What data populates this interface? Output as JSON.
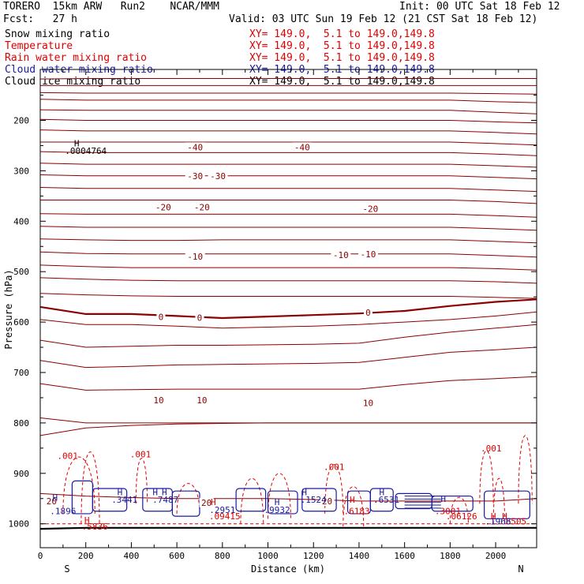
{
  "header": {
    "model": "TORERO  15km ARW   Run2    NCAR/MMM",
    "init": "Init: 00 UTC Sat 18 Feb 12",
    "fcst": "Fcst:   27 h",
    "valid": "Valid: 03 UTC Sun 19 Feb 12 (21 CST Sat 18 Feb 12)"
  },
  "legend": [
    {
      "name": "Snow mixing ratio",
      "coords": "XY= 149.0,  5.1 to 149.0,149.8",
      "color": "black"
    },
    {
      "name": "Temperature",
      "coords": "XY= 149.0,  5.1 to 149.0,149.8",
      "color": "red"
    },
    {
      "name": "Rain water mixing ratio",
      "coords": "XY= 149.0,  5.1 to 149.0,149.8",
      "color": "red"
    },
    {
      "name": "Cloud water mixing ratio",
      "coords": "XY= 149.0,  5.1 to 149.0,149.8",
      "color": "blue"
    },
    {
      "name": "Cloud ice mixing ratio",
      "coords": "XY= 149.0,  5.1 to 149.0,149.8",
      "color": "black"
    }
  ],
  "colors": {
    "temperature": "#8b0000",
    "rain": "#e00000",
    "cloud_water": "#1a1aa0",
    "black": "#000000"
  },
  "chart_data": {
    "type": "line",
    "xlabel": "Distance (km)",
    "ylabel": "Pressure (hPa)",
    "xlim": [
      0,
      2180
    ],
    "ylim": [
      1050,
      100
    ],
    "x_ticks": [
      "0",
      "200",
      "400",
      "600",
      "800",
      "1000",
      "1200",
      "1400",
      "1600",
      "1800",
      "2000"
    ],
    "y_ticks": [
      "200",
      "300",
      "400",
      "500",
      "600",
      "700",
      "800",
      "900",
      "1000"
    ],
    "end_labels": {
      "left": "S",
      "right": "N"
    },
    "temperature_contours_x": [
      0,
      200,
      400,
      600,
      800,
      1000,
      1200,
      1400,
      1600,
      1800,
      2000,
      2180
    ],
    "temperature_contours": [
      {
        "p": [
          118,
          117,
          117,
          117,
          117,
          117,
          117,
          117,
          117,
          117,
          117,
          117
        ]
      },
      {
        "p": [
          131,
          131,
          131,
          131,
          131,
          131,
          131,
          131,
          131,
          131,
          131,
          131
        ]
      },
      {
        "p": [
          145,
          146,
          146,
          146,
          146,
          146,
          146,
          146,
          146,
          146,
          147,
          148
        ]
      },
      {
        "p": [
          158,
          160,
          160,
          160,
          160,
          160,
          160,
          160,
          160,
          160,
          163,
          165
        ]
      },
      {
        "p": [
          179,
          180,
          180,
          180,
          180,
          180,
          180,
          180,
          180,
          180,
          184,
          187
        ]
      },
      {
        "p": [
          198,
          200,
          200,
          200,
          200,
          200,
          200,
          200,
          200,
          200,
          203,
          205
        ]
      },
      {
        "p": [
          219,
          221,
          221,
          221,
          221,
          221,
          221,
          221,
          221,
          221,
          224,
          227
        ]
      },
      {
        "p": [
          243,
          243,
          243,
          243,
          243,
          243,
          243,
          243,
          243,
          243,
          246,
          249
        ]
      },
      {
        "p": [
          262,
          264,
          264,
          264,
          264,
          264,
          264,
          264,
          264,
          264,
          267,
          270
        ]
      },
      {
        "p": [
          285,
          287,
          287,
          287,
          287,
          287,
          287,
          287,
          287,
          287,
          290,
          293
        ]
      },
      {
        "p": [
          308,
          310,
          310,
          310,
          310,
          310,
          310,
          310,
          310,
          310,
          313,
          316
        ]
      },
      {
        "p": [
          333,
          335,
          335,
          335,
          335,
          335,
          335,
          335,
          335,
          335,
          338,
          341
        ]
      },
      {
        "p": [
          358,
          358,
          358,
          358,
          358,
          358,
          358,
          358,
          358,
          358,
          361,
          365
        ]
      },
      {
        "p": [
          385,
          386,
          386,
          386,
          386,
          386,
          386,
          386,
          386,
          386,
          389,
          392
        ]
      },
      {
        "p": [
          410,
          412,
          412,
          412,
          412,
          412,
          412,
          412,
          412,
          412,
          415,
          418
        ]
      },
      {
        "p": [
          435,
          437,
          438,
          438,
          437,
          437,
          437,
          437,
          437,
          437,
          440,
          443
        ]
      },
      {
        "p": [
          461,
          464,
          465,
          465,
          465,
          465,
          465,
          465,
          465,
          465,
          468,
          471
        ]
      },
      {
        "p": [
          487,
          490,
          492,
          492,
          492,
          492,
          492,
          492,
          492,
          492,
          494,
          497
        ]
      },
      {
        "p": [
          512,
          515,
          517,
          518,
          518,
          518,
          518,
          518,
          518,
          518,
          520,
          523
        ]
      },
      {
        "p": [
          543,
          546,
          548,
          549,
          549,
          549,
          549,
          549,
          549,
          549,
          551,
          553
        ]
      },
      {
        "p": [
          570,
          584,
          584,
          588,
          592,
          589,
          586,
          583,
          578,
          568,
          560,
          555
        ],
        "bold": true
      },
      {
        "p": [
          595,
          605,
          605,
          608,
          612,
          610,
          608,
          605,
          600,
          595,
          588,
          580
        ]
      },
      {
        "p": [
          636,
          650,
          648,
          646,
          646,
          645,
          644,
          642,
          630,
          620,
          612,
          605
        ]
      },
      {
        "p": [
          676,
          690,
          688,
          685,
          684,
          683,
          682,
          680,
          670,
          660,
          655,
          650
        ]
      },
      {
        "p": [
          722,
          735,
          734,
          733,
          733,
          733,
          733,
          733,
          724,
          716,
          712,
          708
        ]
      },
      {
        "p": [
          790,
          800,
          800,
          800,
          800,
          800,
          800,
          800,
          800,
          800,
          800,
          800
        ]
      },
      {
        "p": [
          825,
          810,
          805,
          802,
          801,
          800,
          800,
          800,
          800,
          800,
          800,
          800
        ]
      },
      {
        "p": [
          940,
          945,
          948,
          950,
          950,
          950,
          952,
          955,
          955,
          955,
          955,
          950
        ]
      }
    ],
    "temperature_labels": [
      {
        "text": "-40",
        "x": 680,
        "p": 253
      },
      {
        "text": "-40",
        "x": 1150,
        "p": 253
      },
      {
        "text": "-30",
        "x": 680,
        "p": 310
      },
      {
        "text": "-30",
        "x": 780,
        "p": 310
      },
      {
        "text": "-20",
        "x": 540,
        "p": 372
      },
      {
        "text": "-20",
        "x": 710,
        "p": 372
      },
      {
        "text": "-20",
        "x": 1450,
        "p": 375
      },
      {
        "text": "-10",
        "x": 680,
        "p": 470
      },
      {
        "text": "-10",
        "x": 1320,
        "p": 467
      },
      {
        "text": "-10",
        "x": 1440,
        "p": 465
      },
      {
        "text": "0",
        "x": 530,
        "p": 590
      },
      {
        "text": "0",
        "x": 700,
        "p": 591
      },
      {
        "text": "0",
        "x": 1440,
        "p": 581
      },
      {
        "text": "10",
        "x": 520,
        "p": 755
      },
      {
        "text": "10",
        "x": 710,
        "p": 755
      },
      {
        "text": "10",
        "x": 1440,
        "p": 760
      },
      {
        "text": "20",
        "x": 50,
        "p": 955
      },
      {
        "text": "20",
        "x": 730,
        "p": 958
      },
      {
        "text": "20",
        "x": 1260,
        "p": 955
      }
    ],
    "rain_labels": [
      {
        "text": ".001",
        "x": 120,
        "p": 865
      },
      {
        "text": ".001",
        "x": 440,
        "p": 862
      },
      {
        "text": ".001",
        "x": 1290,
        "p": 887
      },
      {
        "text": ".001",
        "x": 1980,
        "p": 850
      }
    ],
    "cloud_water_labels": [
      {
        "text": ".1896",
        "x": 100,
        "p": 975
      },
      {
        "text": ".3441",
        "x": 370,
        "p": 952
      },
      {
        "text": ".7487",
        "x": 550,
        "p": 952
      },
      {
        "text": ".2951",
        "x": 800,
        "p": 972
      },
      {
        "text": ".9932",
        "x": 1040,
        "p": 972
      },
      {
        "text": ".1524",
        "x": 1200,
        "p": 952
      },
      {
        "text": ".6531",
        "x": 1520,
        "p": 952
      },
      {
        "text": ".1966",
        "x": 2010,
        "p": 995
      }
    ],
    "rain_value_labels": [
      {
        "text": ".5836",
        "x": 240,
        "p": 1005
      },
      {
        "text": ".09415",
        "x": 810,
        "p": 985
      },
      {
        "text": ".6183",
        "x": 1390,
        "p": 975
      },
      {
        "text": ".06126",
        "x": 1850,
        "p": 985
      },
      {
        "text": ".3001",
        "x": 1790,
        "p": 975
      },
      {
        "text": "8505",
        "x": 2090,
        "p": 995
      }
    ],
    "snow_max": {
      "text": ".0004764",
      "x": 200,
      "p": 260
    },
    "H_labels": [
      {
        "x": 160,
        "p": 245,
        "color": "black"
      },
      {
        "x": 65,
        "p": 948,
        "color": "blue"
      },
      {
        "x": 205,
        "p": 993,
        "color": "red"
      },
      {
        "x": 350,
        "p": 937,
        "color": "blue"
      },
      {
        "x": 505,
        "p": 937,
        "color": "blue"
      },
      {
        "x": 545,
        "p": 937,
        "color": "blue"
      },
      {
        "x": 760,
        "p": 957,
        "color": "red"
      },
      {
        "x": 1040,
        "p": 957,
        "color": "blue"
      },
      {
        "x": 1160,
        "p": 937,
        "color": "blue"
      },
      {
        "x": 1370,
        "p": 952,
        "color": "red"
      },
      {
        "x": 1500,
        "p": 937,
        "color": "blue"
      },
      {
        "x": 1770,
        "p": 950,
        "color": "blue"
      },
      {
        "x": 1990,
        "p": 985,
        "color": "red"
      },
      {
        "x": 2040,
        "p": 985,
        "color": "red"
      }
    ],
    "surface_p": [
      1010,
      1008,
      1008,
      1008,
      1008,
      1008,
      1008,
      1008,
      1008,
      1008,
      1008,
      1008
    ]
  }
}
